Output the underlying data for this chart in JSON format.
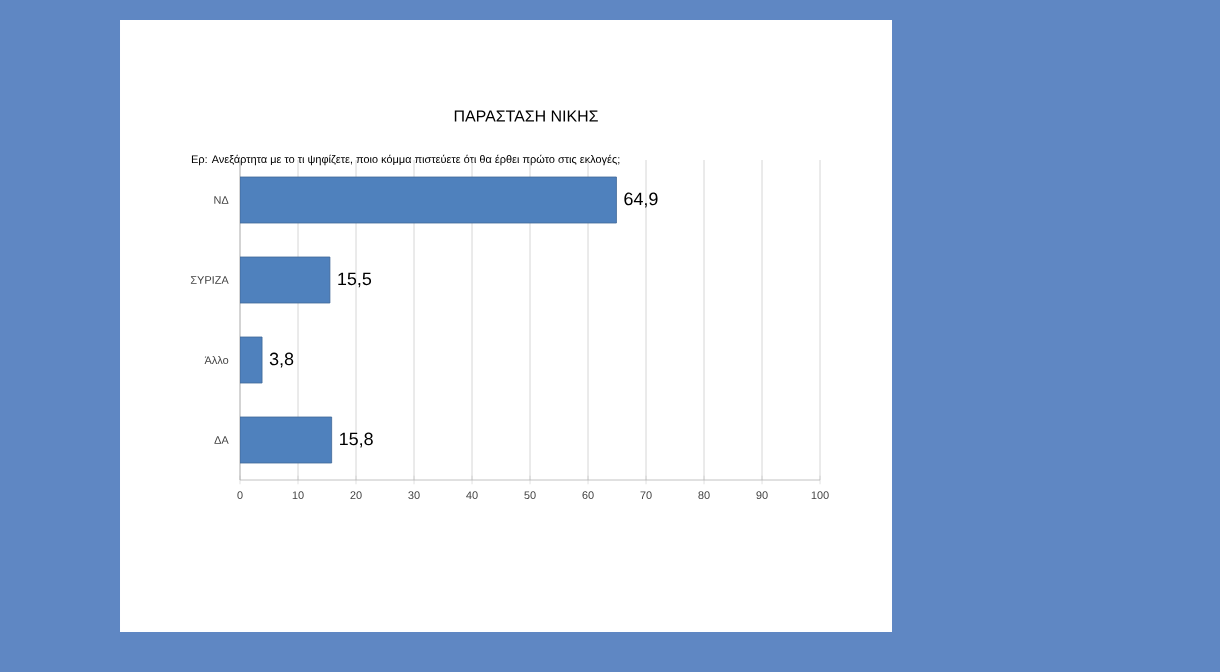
{
  "chart_data": {
    "type": "bar",
    "orientation": "horizontal",
    "title": "ΠΑΡΑΣΤΑΣΗ ΝΙΚΗΣ",
    "subtitle": "Ερ: Ανεξάρτητα με το τι ψηφίζετε, ποιο κόμμα πιστεύετε ότι θα έρθει πρώτο στις εκλογές;",
    "categories": [
      "ΝΔ",
      "ΣΥΡΙΖΑ",
      "Άλλο",
      "ΔΑ"
    ],
    "values": [
      64.9,
      15.5,
      3.8,
      15.8
    ],
    "value_labels": [
      "64,9",
      "15,5",
      "3,8",
      "15,8"
    ],
    "color": "#4f81bd",
    "xlim": [
      0,
      100
    ],
    "xticks": [
      0,
      10,
      20,
      30,
      40,
      50,
      60,
      70,
      80,
      90,
      100
    ],
    "grid": "x"
  }
}
